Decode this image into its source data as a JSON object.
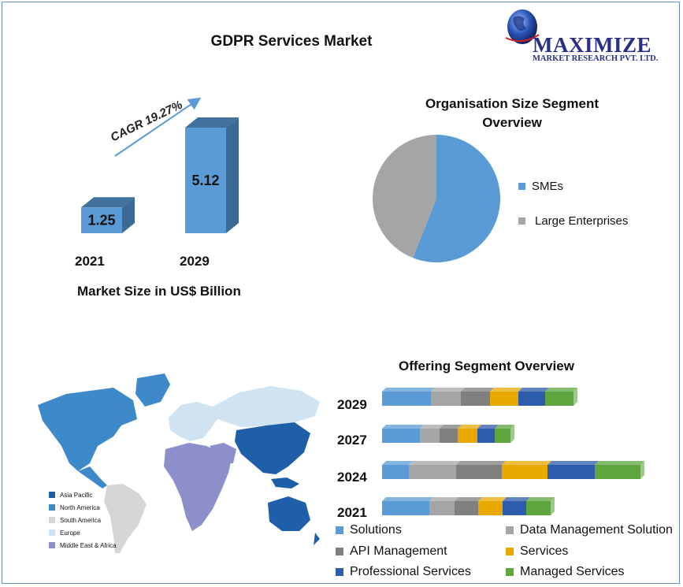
{
  "title": "GDPR Services Market",
  "logo": {
    "line1": "MAXIMIZE",
    "line2": "MARKET RESEARCH PVT. LTD.",
    "brand_color": "#2a2f86",
    "icon": "globe-icon"
  },
  "market_size": {
    "caption": "Market Size in US$ Billion",
    "cagr_label": "CAGR 19.27%"
  },
  "pie_title_lines": [
    "Organisation Size Segment",
    "Overview"
  ],
  "offering_title": "Offering Segment Overview",
  "map_legend": [
    {
      "label": "Asia Pacific",
      "color": "#1f5faa"
    },
    {
      "label": "North America",
      "color": "#3d89c9"
    },
    {
      "label": "South America",
      "color": "#d6d6d6"
    },
    {
      "label": "Europe",
      "color": "#cfe3f2"
    },
    {
      "label": "Middle East & Africa",
      "color": "#8d8fcb"
    }
  ],
  "chart_data": [
    {
      "type": "bar",
      "categories": [
        "2021",
        "2029"
      ],
      "values": [
        1.25,
        5.12
      ],
      "title": "GDPR Services Market",
      "xlabel": "Market Size in US$ Billion",
      "ylabel": "",
      "annotations": [
        "CAGR 19.27%"
      ],
      "colors": {
        "front": "#5b9bd5",
        "side": "#3b6a97",
        "top": "#41719c"
      }
    },
    {
      "type": "pie",
      "title": "Organisation Size Segment Overview",
      "labels": [
        "SMEs",
        "Large Enterprises"
      ],
      "values": [
        56,
        44
      ],
      "colors": [
        "#5b9bd5",
        "#a5a5a5"
      ],
      "legend": "right"
    },
    {
      "type": "bar",
      "orientation": "horizontal-stacked",
      "title": "Offering Segment Overview",
      "categories": [
        "2029",
        "2027",
        "2024",
        "2021"
      ],
      "legend": "bottom",
      "series": [
        {
          "name": "Solutions",
          "color": "#5b9bd5",
          "values": [
            62,
            48,
            34,
            60
          ]
        },
        {
          "name": "Data Management Solution",
          "color": "#a5a5a5",
          "values": [
            38,
            25,
            60,
            32
          ]
        },
        {
          "name": "API Management",
          "color": "#7f7f7f",
          "values": [
            37,
            23,
            58,
            30
          ]
        },
        {
          "name": "Services",
          "color": "#e8a800",
          "values": [
            36,
            25,
            58,
            31
          ]
        },
        {
          "name": "Professional Services",
          "color": "#2e5cad",
          "values": [
            34,
            22,
            60,
            30
          ]
        },
        {
          "name": "Managed Services",
          "color": "#5ea540",
          "values": [
            36,
            20,
            58,
            31
          ]
        }
      ]
    }
  ]
}
